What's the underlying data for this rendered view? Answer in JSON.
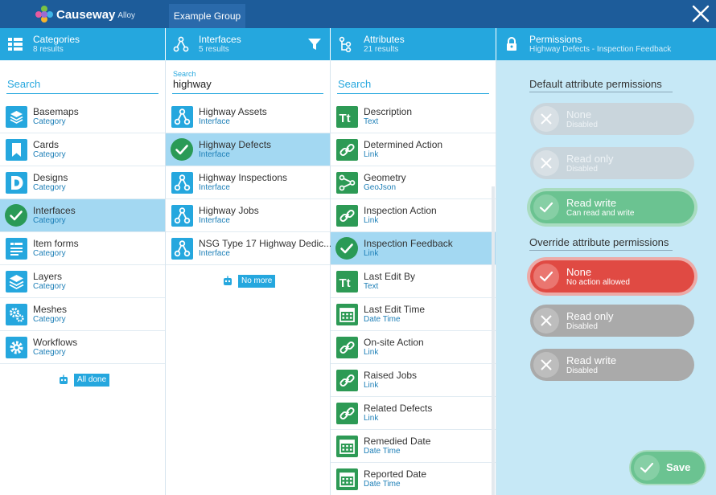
{
  "app": {
    "name": "Causeway",
    "suffix": "Alloy",
    "group_tab": "Example Group"
  },
  "colors": {
    "header": "#1d5c9a",
    "accent": "#25a7de",
    "attr_icon": "#2d9a55",
    "selected": "#a3d8f2",
    "panel": "#c6e8f6",
    "enabled": "#6bc391",
    "danger": "#e04a43",
    "disabled": "#aaaaaa"
  },
  "categories": {
    "title": "Categories",
    "count": "8 results",
    "search_placeholder": "Search",
    "items": [
      {
        "name": "Basemaps",
        "type": "Category",
        "icon": "layers-box-icon"
      },
      {
        "name": "Cards",
        "type": "Category",
        "icon": "bookmark-icon"
      },
      {
        "name": "Designs",
        "type": "Category",
        "icon": "design-d-icon"
      },
      {
        "name": "Interfaces",
        "type": "Category",
        "icon": "check-icon",
        "selected": true
      },
      {
        "name": "Item forms",
        "type": "Category",
        "icon": "form-icon"
      },
      {
        "name": "Layers",
        "type": "Category",
        "icon": "layers-icon"
      },
      {
        "name": "Meshes",
        "type": "Category",
        "icon": "gears-icon"
      },
      {
        "name": "Workflows",
        "type": "Category",
        "icon": "gear-icon"
      }
    ],
    "footer": "All done"
  },
  "interfaces": {
    "title": "Interfaces",
    "count": "5 results",
    "search_label": "Search",
    "search_value": "highway",
    "items": [
      {
        "name": "Highway Assets",
        "type": "Interface"
      },
      {
        "name": "Highway Defects",
        "type": "Interface",
        "selected": true
      },
      {
        "name": "Highway Inspections",
        "type": "Interface"
      },
      {
        "name": "Highway Jobs",
        "type": "Interface"
      },
      {
        "name": "NSG Type 17 Highway Dedic...",
        "type": "Interface"
      }
    ],
    "footer": "No more"
  },
  "attributes": {
    "title": "Attributes",
    "count": "21 results",
    "search_placeholder": "Search",
    "items": [
      {
        "name": "Description",
        "type": "Text",
        "icon": "text-tt-icon"
      },
      {
        "name": "Determined Action",
        "type": "Link",
        "icon": "link-icon"
      },
      {
        "name": "Geometry",
        "type": "GeoJson",
        "icon": "geometry-icon"
      },
      {
        "name": "Inspection Action",
        "type": "Link",
        "icon": "link-icon"
      },
      {
        "name": "Inspection Feedback",
        "type": "Link",
        "icon": "check-icon",
        "selected": true
      },
      {
        "name": "Last Edit By",
        "type": "Text",
        "icon": "text-tt-icon"
      },
      {
        "name": "Last Edit Time",
        "type": "Date Time",
        "icon": "calendar-icon"
      },
      {
        "name": "On-site Action",
        "type": "Link",
        "icon": "link-icon"
      },
      {
        "name": "Raised Jobs",
        "type": "Link",
        "icon": "link-icon"
      },
      {
        "name": "Related Defects",
        "type": "Link",
        "icon": "link-icon"
      },
      {
        "name": "Remedied Date",
        "type": "Date Time",
        "icon": "calendar-icon"
      },
      {
        "name": "Reported Date",
        "type": "Date Time",
        "icon": "calendar-icon"
      }
    ]
  },
  "permissions": {
    "title": "Permissions",
    "subtitle": "Highway Defects - Inspection Feedback",
    "default_title": "Default attribute permissions",
    "default_options": [
      {
        "label": "None",
        "sub": "Disabled",
        "state": "dim"
      },
      {
        "label": "Read only",
        "sub": "Disabled",
        "state": "dim"
      },
      {
        "label": "Read write",
        "sub": "Can read and write",
        "state": "green"
      }
    ],
    "override_title": "Override attribute permissions",
    "override_options": [
      {
        "label": "None",
        "sub": "No action allowed",
        "state": "red"
      },
      {
        "label": "Read only",
        "sub": "Disabled",
        "state": "grey"
      },
      {
        "label": "Read write",
        "sub": "Disabled",
        "state": "grey"
      }
    ],
    "save_label": "Save"
  }
}
